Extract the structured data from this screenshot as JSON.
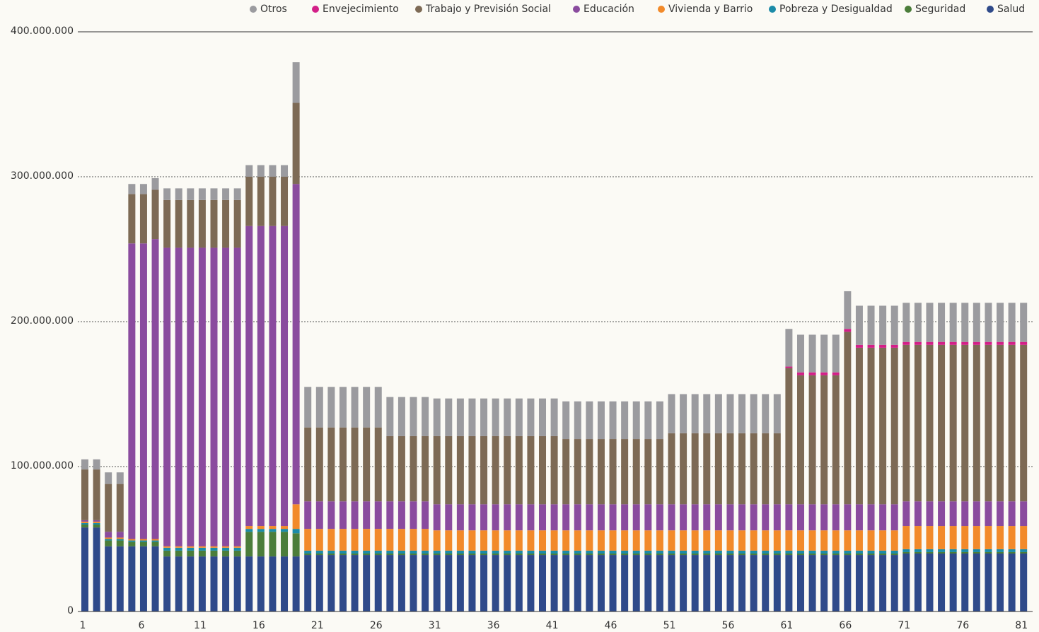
{
  "chart_data": {
    "type": "stacked_bar",
    "categories": [
      1,
      null,
      null,
      null,
      null,
      6,
      null,
      null,
      null,
      null,
      11,
      null,
      null,
      null,
      null,
      16,
      null,
      null,
      null,
      null,
      21,
      null,
      null,
      null,
      null,
      26,
      null,
      null,
      null,
      null,
      31,
      null,
      null,
      null,
      null,
      36,
      null,
      null,
      null,
      null,
      41,
      null,
      null,
      null,
      null,
      46,
      null,
      null,
      null,
      null,
      51,
      null,
      null,
      null,
      null,
      56,
      null,
      null,
      null,
      null,
      61,
      null,
      null,
      null,
      null,
      66,
      null,
      null,
      null,
      null,
      71,
      null,
      null,
      null,
      null,
      76,
      null,
      null,
      null,
      null,
      81
    ],
    "ylim": [
      0,
      400000000
    ],
    "yticks": [
      0,
      {
        "value": 100000000,
        "label": "100.000.000"
      },
      {
        "value": 200000000,
        "label": "200.000.000"
      },
      {
        "value": 300000000,
        "label": "300.000.000"
      },
      {
        "value": 400000000,
        "label": "400.000.000"
      }
    ],
    "grid": true,
    "legend": "top",
    "series": [
      {
        "name": "Salud",
        "color": "#2f4a8a",
        "values": [
          58000000,
          58000000,
          45000000,
          45000000,
          45000000,
          45000000,
          45000000,
          38000000,
          38000000,
          38000000,
          38000000,
          38000000,
          38000000,
          38000000,
          38000000,
          38000000,
          38000000,
          38000000,
          38000000,
          39000000,
          39000000,
          39000000,
          39000000,
          39000000,
          39000000,
          39000000,
          39000000,
          39000000,
          39000000,
          39000000,
          39000000,
          39000000,
          39000000,
          39000000,
          39000000,
          39000000,
          39000000,
          39000000,
          39000000,
          39000000,
          39000000,
          39000000,
          39000000,
          39000000,
          39000000,
          39000000,
          39000000,
          39000000,
          39000000,
          39000000,
          39000000,
          39000000,
          39000000,
          39000000,
          39000000,
          39000000,
          39000000,
          39000000,
          39000000,
          39000000,
          39000000,
          39000000,
          39000000,
          39000000,
          39000000,
          39000000,
          39000000,
          39000000,
          39000000,
          39000000,
          40000000,
          40000000,
          40000000,
          40000000,
          40000000,
          40000000,
          40000000,
          40000000,
          40000000,
          40000000,
          40000000
        ]
      },
      {
        "name": "Seguridad",
        "color": "#4b7d3a",
        "values": [
          2000000,
          2000000,
          4000000,
          4000000,
          3000000,
          3000000,
          3000000,
          4000000,
          4000000,
          4000000,
          4000000,
          4000000,
          4000000,
          4000000,
          17000000,
          17000000,
          17000000,
          17000000,
          16000000,
          1000000,
          1000000,
          1000000,
          1000000,
          1000000,
          1000000,
          1000000,
          1000000,
          1000000,
          1000000,
          1000000,
          1000000,
          1000000,
          1000000,
          1000000,
          1000000,
          1000000,
          1000000,
          1000000,
          1000000,
          1000000,
          1000000,
          1000000,
          1000000,
          1000000,
          1000000,
          1000000,
          1000000,
          1000000,
          1000000,
          1000000,
          1000000,
          1000000,
          1000000,
          1000000,
          1000000,
          1000000,
          1000000,
          1000000,
          1000000,
          1000000,
          1000000,
          1000000,
          1000000,
          1000000,
          1000000,
          1000000,
          1000000,
          1000000,
          1000000,
          1000000,
          1000000,
          1000000,
          1000000,
          1000000,
          1000000,
          1000000,
          1000000,
          1000000,
          1000000,
          1000000,
          1000000
        ]
      },
      {
        "name": "Pobreza y Desigualdad",
        "color": "#1b8ba8",
        "values": [
          1000000,
          1000000,
          1000000,
          1000000,
          1000000,
          1000000,
          1000000,
          2000000,
          2000000,
          2000000,
          2000000,
          2000000,
          2000000,
          2000000,
          2000000,
          2000000,
          2000000,
          2000000,
          3000000,
          2000000,
          2000000,
          2000000,
          2000000,
          2000000,
          2000000,
          2000000,
          2000000,
          2000000,
          2000000,
          2000000,
          2000000,
          2000000,
          2000000,
          2000000,
          2000000,
          2000000,
          2000000,
          2000000,
          2000000,
          2000000,
          2000000,
          2000000,
          2000000,
          2000000,
          2000000,
          2000000,
          2000000,
          2000000,
          2000000,
          2000000,
          2000000,
          2000000,
          2000000,
          2000000,
          2000000,
          2000000,
          2000000,
          2000000,
          2000000,
          2000000,
          2000000,
          2000000,
          2000000,
          2000000,
          2000000,
          2000000,
          2000000,
          2000000,
          2000000,
          2000000,
          2000000,
          2000000,
          2000000,
          2000000,
          2000000,
          2000000,
          2000000,
          2000000,
          2000000,
          2000000,
          2000000
        ]
      },
      {
        "name": "Vivienda y Barrio",
        "color": "#f28a2a",
        "values": [
          1000000,
          1000000,
          1000000,
          1000000,
          1000000,
          1000000,
          1000000,
          1000000,
          1000000,
          1000000,
          1000000,
          1000000,
          1000000,
          1000000,
          2000000,
          2000000,
          2000000,
          2000000,
          17000000,
          15000000,
          15000000,
          15000000,
          15000000,
          15000000,
          15000000,
          15000000,
          15000000,
          15000000,
          15000000,
          15000000,
          14000000,
          14000000,
          14000000,
          14000000,
          14000000,
          14000000,
          14000000,
          14000000,
          14000000,
          14000000,
          14000000,
          14000000,
          14000000,
          14000000,
          14000000,
          14000000,
          14000000,
          14000000,
          14000000,
          14000000,
          14000000,
          14000000,
          14000000,
          14000000,
          14000000,
          14000000,
          14000000,
          14000000,
          14000000,
          14000000,
          14000000,
          14000000,
          14000000,
          14000000,
          14000000,
          14000000,
          14000000,
          14000000,
          14000000,
          14000000,
          16000000,
          16000000,
          16000000,
          16000000,
          16000000,
          16000000,
          16000000,
          16000000,
          16000000,
          16000000,
          16000000
        ]
      },
      {
        "name": "Educación",
        "color": "#8a4b9e",
        "values": [
          1000000,
          1000000,
          4000000,
          4000000,
          204000000,
          204000000,
          207000000,
          206000000,
          206000000,
          206000000,
          206000000,
          206000000,
          206000000,
          206000000,
          207000000,
          207000000,
          207000000,
          207000000,
          221000000,
          19000000,
          19000000,
          19000000,
          19000000,
          19000000,
          19000000,
          19000000,
          19000000,
          19000000,
          19000000,
          19000000,
          18000000,
          18000000,
          18000000,
          18000000,
          18000000,
          18000000,
          18000000,
          18000000,
          18000000,
          18000000,
          18000000,
          18000000,
          18000000,
          18000000,
          18000000,
          18000000,
          18000000,
          18000000,
          18000000,
          18000000,
          18000000,
          18000000,
          18000000,
          18000000,
          18000000,
          18000000,
          18000000,
          18000000,
          18000000,
          18000000,
          18000000,
          18000000,
          18000000,
          18000000,
          18000000,
          18000000,
          18000000,
          18000000,
          18000000,
          18000000,
          17000000,
          17000000,
          17000000,
          17000000,
          17000000,
          17000000,
          17000000,
          17000000,
          17000000,
          17000000,
          17000000
        ]
      },
      {
        "name": "Trabajo y Previsión Social",
        "color": "#7d6a55",
        "values": [
          35000000,
          35000000,
          33000000,
          33000000,
          34000000,
          34000000,
          34000000,
          33000000,
          33000000,
          33000000,
          33000000,
          33000000,
          33000000,
          33000000,
          34000000,
          34000000,
          34000000,
          34000000,
          56000000,
          51000000,
          51000000,
          51000000,
          51000000,
          51000000,
          51000000,
          51000000,
          45000000,
          45000000,
          45000000,
          45000000,
          47000000,
          47000000,
          47000000,
          47000000,
          47000000,
          47000000,
          47000000,
          47000000,
          47000000,
          47000000,
          47000000,
          45000000,
          45000000,
          45000000,
          45000000,
          45000000,
          45000000,
          45000000,
          45000000,
          45000000,
          49000000,
          49000000,
          49000000,
          49000000,
          49000000,
          49000000,
          49000000,
          49000000,
          49000000,
          49000000,
          94000000,
          89000000,
          89000000,
          89000000,
          89000000,
          119000000,
          108000000,
          108000000,
          108000000,
          108000000,
          108000000,
          108000000,
          108000000,
          108000000,
          108000000,
          108000000,
          108000000,
          108000000,
          108000000,
          108000000,
          108000000
        ]
      },
      {
        "name": "Envejecimiento",
        "color": "#d31f88",
        "values": [
          0,
          0,
          0,
          0,
          0,
          0,
          0,
          0,
          0,
          0,
          0,
          0,
          0,
          0,
          0,
          0,
          0,
          0,
          0,
          0,
          0,
          0,
          0,
          0,
          0,
          0,
          0,
          0,
          0,
          0,
          0,
          0,
          0,
          0,
          0,
          0,
          0,
          0,
          0,
          0,
          0,
          0,
          0,
          0,
          0,
          0,
          0,
          0,
          0,
          0,
          0,
          0,
          0,
          0,
          0,
          0,
          0,
          0,
          0,
          0,
          1000000,
          2000000,
          2000000,
          2000000,
          2000000,
          2000000,
          2000000,
          2000000,
          2000000,
          2000000,
          2000000,
          2000000,
          2000000,
          2000000,
          2000000,
          2000000,
          2000000,
          2000000,
          2000000,
          2000000,
          2000000
        ]
      },
      {
        "name": "Otros",
        "color": "#9b9b9f",
        "values": [
          7000000,
          7000000,
          8000000,
          8000000,
          7000000,
          7000000,
          8000000,
          8000000,
          8000000,
          8000000,
          8000000,
          8000000,
          8000000,
          8000000,
          8000000,
          8000000,
          8000000,
          8000000,
          28000000,
          28000000,
          28000000,
          28000000,
          28000000,
          28000000,
          28000000,
          28000000,
          27000000,
          27000000,
          27000000,
          27000000,
          26000000,
          26000000,
          26000000,
          26000000,
          26000000,
          26000000,
          26000000,
          26000000,
          26000000,
          26000000,
          26000000,
          26000000,
          26000000,
          26000000,
          26000000,
          26000000,
          26000000,
          26000000,
          26000000,
          26000000,
          27000000,
          27000000,
          27000000,
          27000000,
          27000000,
          27000000,
          27000000,
          27000000,
          27000000,
          27000000,
          26000000,
          26000000,
          26000000,
          26000000,
          26000000,
          26000000,
          27000000,
          27000000,
          27000000,
          27000000,
          27000000,
          27000000,
          27000000,
          27000000,
          27000000,
          27000000,
          27000000,
          27000000,
          27000000,
          27000000,
          27000000
        ]
      }
    ]
  }
}
